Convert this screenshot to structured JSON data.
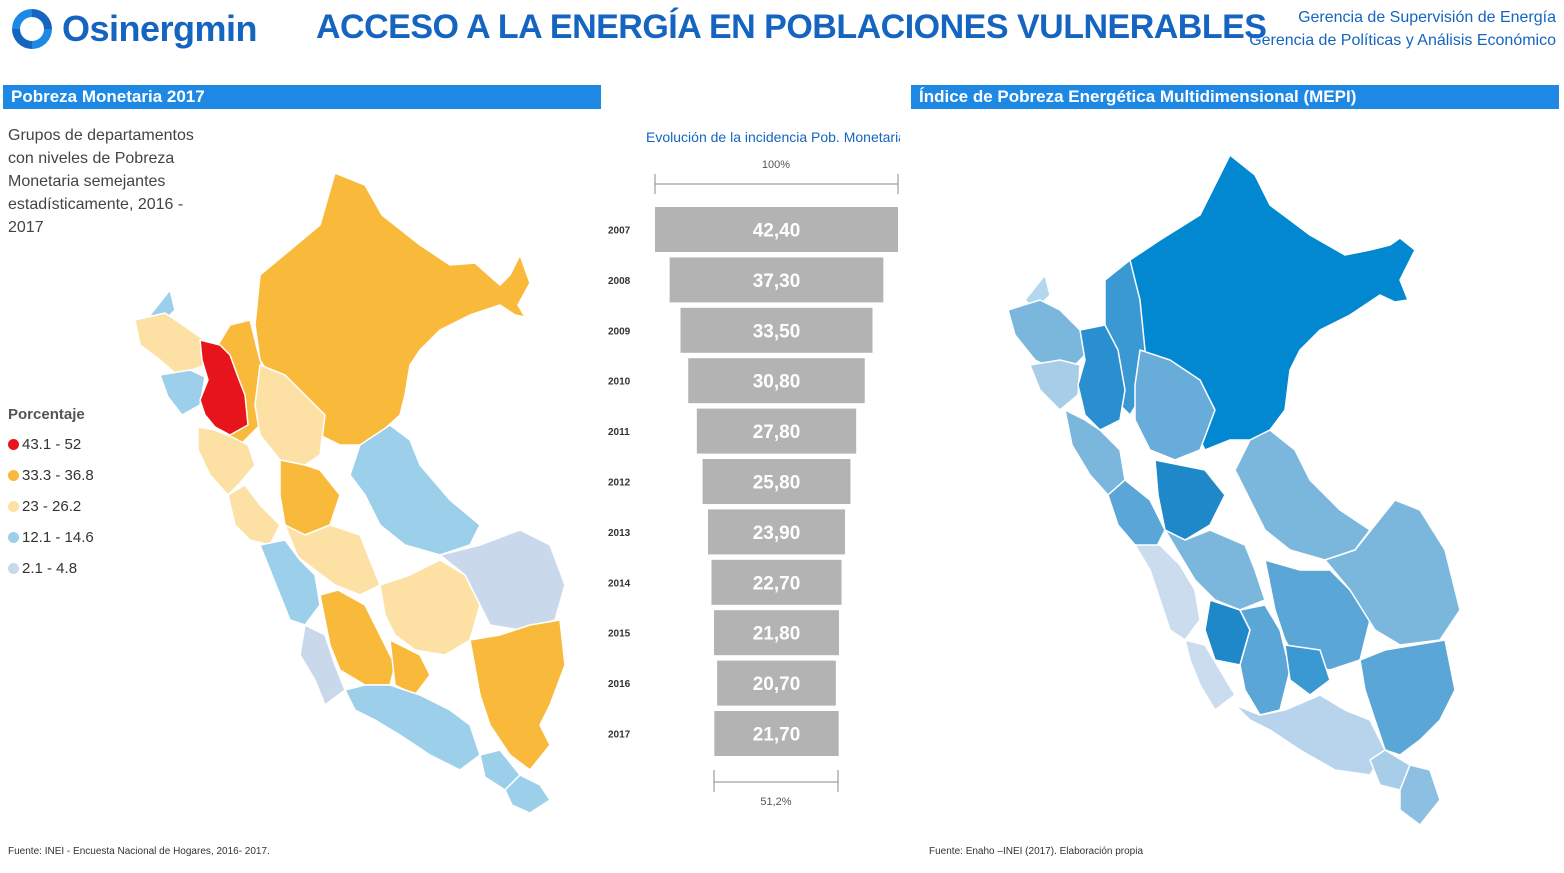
{
  "header": {
    "brand": "Osinergmin",
    "title": "ACCESO A LA ENERGÍA EN POBLACIONES VULNERABLES",
    "gerencia_1": "Gerencia de Supervisión de Energía",
    "gerencia_2": "Gerencia de Políticas y Análisis Económico"
  },
  "left_panel": {
    "title": "Pobreza Monetaria 2017",
    "description": "Grupos de departamentos con niveles de Pobreza Monetaria semejantes estadísticamente, 2016 - 2017",
    "legend_title": "Porcentaje",
    "legend": [
      {
        "label": "43.1 - 52",
        "color": "#e8141b"
      },
      {
        "label": "33.3 - 36.8",
        "color": "#f9b93b"
      },
      {
        "label": "23 - 26.2",
        "color": "#fde0a4"
      },
      {
        "label": "12.1 - 14.6",
        "color": "#9ccfea"
      },
      {
        "label": "2.1 - 4.8",
        "color": "#cad8ec"
      }
    ],
    "source": "Fuente: INEI - Encuesta Nacional de Hogares, 2016- 2017."
  },
  "funnel": {
    "title": "Evolución de la incidencia Pob. Monetaria",
    "top_label": "100%",
    "bottom_label": "51,2%"
  },
  "chart_data": {
    "type": "bar",
    "title": "Evolución de la incidencia Pob. Monetaria",
    "categories": [
      "2007",
      "2008",
      "2009",
      "2010",
      "2011",
      "2012",
      "2013",
      "2014",
      "2015",
      "2016",
      "2017"
    ],
    "values": [
      42.4,
      37.3,
      33.5,
      30.8,
      27.8,
      25.8,
      23.9,
      22.7,
      21.8,
      20.7,
      21.7
    ],
    "value_labels": [
      "42,40",
      "37,30",
      "33,50",
      "30,80",
      "27,80",
      "25,80",
      "23,90",
      "22,70",
      "21,80",
      "20,70",
      "21,70"
    ],
    "bar_color": "#b3b3b3",
    "orientation": "horizontal-funnel",
    "xlabel": "",
    "ylabel": ""
  },
  "right_panel": {
    "title": "Índice de Pobreza Energética Multidimensional (MEPI)",
    "source": "Fuente: Enaho –INEI (2017). Elaboración propia"
  },
  "colors": {
    "brand_blue": "#1565c0",
    "bar_blue": "#1e88e5"
  }
}
